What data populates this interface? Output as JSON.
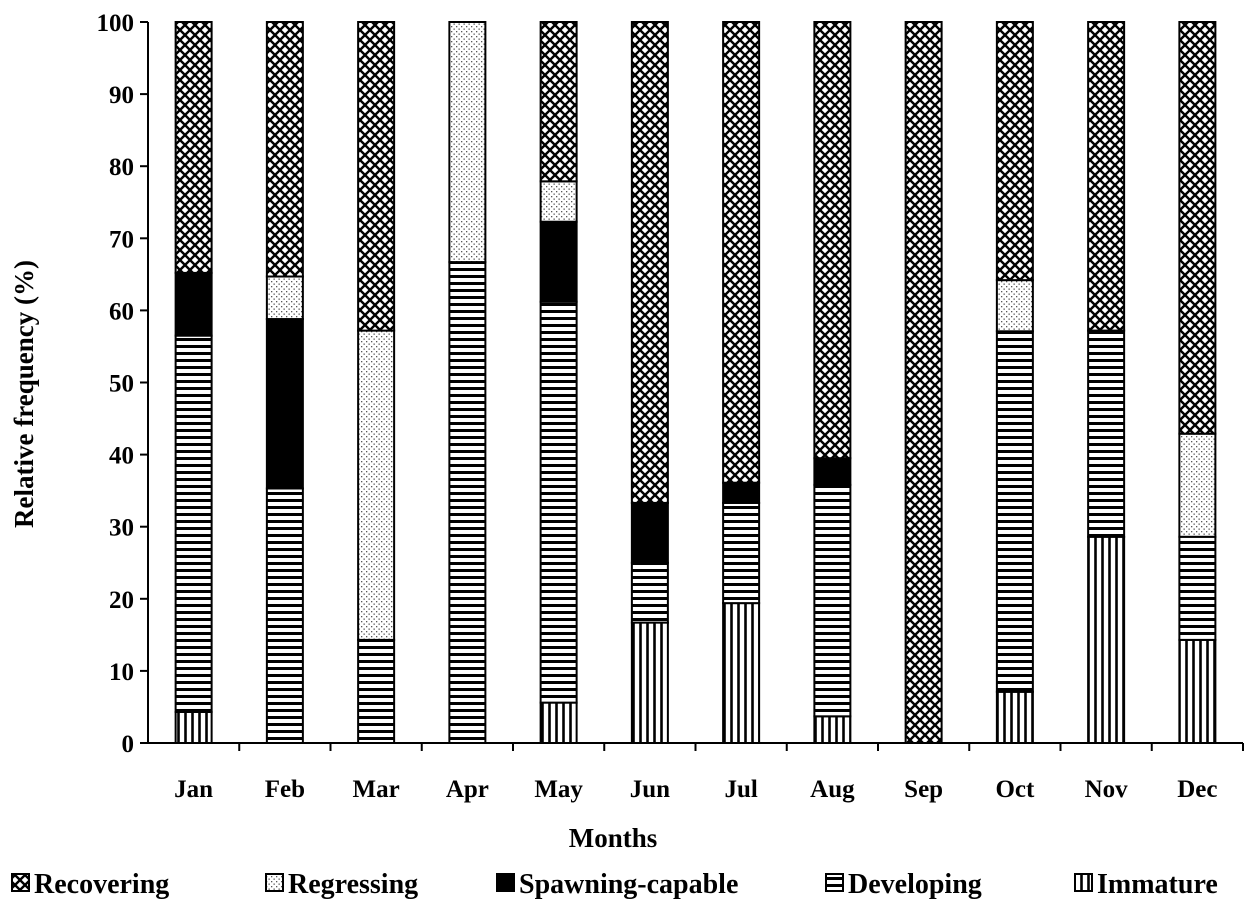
{
  "chart_data": {
    "type": "bar",
    "stacked": true,
    "categories": [
      "Jan",
      "Feb",
      "Mar",
      "Apr",
      "May",
      "Jun",
      "Jul",
      "Aug",
      "Sep",
      "Oct",
      "Nov",
      "Dec"
    ],
    "series": [
      {
        "name": "Immature",
        "pattern": "vertical-lines",
        "values": [
          4.3,
          0,
          0,
          0,
          5.6,
          16.7,
          19.4,
          3.7,
          0,
          7.1,
          28.6,
          14.3
        ]
      },
      {
        "name": "Developing",
        "pattern": "horizontal-lines",
        "values": [
          52.2,
          35.3,
          14.3,
          66.7,
          55.6,
          8.3,
          13.9,
          32.1,
          0,
          50.0,
          28.6,
          14.3
        ]
      },
      {
        "name": "Spawning-capable",
        "pattern": "solid-black",
        "values": [
          8.7,
          23.5,
          0,
          0,
          11.1,
          8.3,
          2.8,
          3.7,
          0,
          0,
          0,
          0
        ]
      },
      {
        "name": "Regressing",
        "pattern": "dots",
        "values": [
          0,
          5.9,
          42.9,
          33.3,
          5.6,
          0,
          0,
          0,
          0,
          7.1,
          0,
          14.3
        ]
      },
      {
        "name": "Recovering",
        "pattern": "crosshatch",
        "values": [
          34.8,
          35.3,
          42.8,
          0,
          22.1,
          66.7,
          63.9,
          60.5,
          100,
          35.8,
          42.8,
          57.1
        ]
      }
    ],
    "xlabel": "Months",
    "ylabel": "Relative frequency (%)",
    "ylim": [
      0,
      100
    ],
    "yticks": [
      "0",
      "10",
      "20",
      "30",
      "40",
      "50",
      "60",
      "70",
      "80",
      "90",
      "100"
    ],
    "legend": {
      "placement": "bottom",
      "order": [
        "Recovering",
        "Regressing",
        "Spawning-capable",
        "Developing",
        "Immature"
      ]
    },
    "grid": false
  }
}
